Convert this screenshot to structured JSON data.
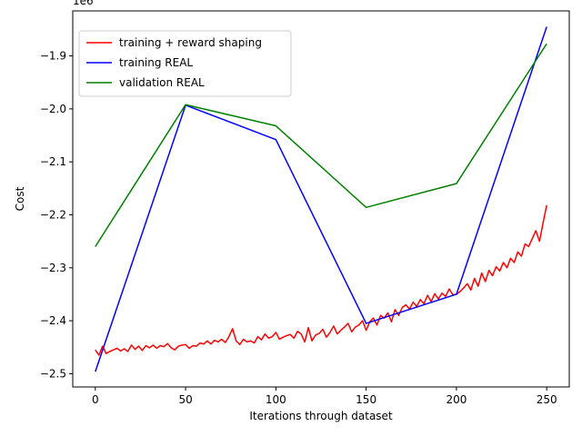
{
  "chart_data": {
    "type": "line",
    "xlabel": "Iterations through dataset",
    "ylabel": "Cost",
    "y_offset_label": "1e6",
    "xlim": [
      -12.5,
      262.5
    ],
    "ylim": [
      -2.525,
      -1.815
    ],
    "y_scale_factor": 1000000,
    "xticks": [
      0,
      50,
      100,
      150,
      200,
      250
    ],
    "yticks": [
      -2.5,
      -2.4,
      -2.3,
      -2.2,
      -2.1,
      -2.0,
      -1.9
    ],
    "ytick_labels": [
      "−2.5",
      "−2.4",
      "−2.3",
      "−2.2",
      "−2.1",
      "−2.0",
      "−1.9"
    ],
    "legend_position": "upper-left",
    "grid": false,
    "series": [
      {
        "name": "training + reward shaping",
        "color": "#ff0000",
        "x": [
          0,
          2,
          4,
          6,
          8,
          10,
          12,
          14,
          16,
          18,
          20,
          22,
          24,
          26,
          28,
          30,
          32,
          34,
          36,
          38,
          40,
          42,
          44,
          46,
          48,
          50,
          52,
          54,
          56,
          58,
          60,
          62,
          64,
          66,
          68,
          70,
          72,
          74,
          76,
          78,
          80,
          82,
          84,
          86,
          88,
          90,
          92,
          94,
          96,
          98,
          100,
          102,
          104,
          106,
          108,
          110,
          112,
          114,
          116,
          118,
          120,
          122,
          124,
          126,
          128,
          130,
          132,
          134,
          136,
          138,
          140,
          142,
          144,
          146,
          148,
          150,
          152,
          154,
          156,
          158,
          160,
          162,
          164,
          166,
          168,
          170,
          172,
          174,
          176,
          178,
          180,
          182,
          184,
          186,
          188,
          190,
          192,
          194,
          196,
          198,
          200,
          202,
          204,
          206,
          208,
          210,
          212,
          214,
          216,
          218,
          220,
          222,
          224,
          226,
          228,
          230,
          232,
          234,
          236,
          238,
          240,
          242,
          244,
          246,
          248,
          250
        ],
        "y": [
          -2.455,
          -2.465,
          -2.448,
          -2.462,
          -2.458,
          -2.455,
          -2.452,
          -2.457,
          -2.453,
          -2.458,
          -2.446,
          -2.454,
          -2.448,
          -2.456,
          -2.447,
          -2.451,
          -2.446,
          -2.452,
          -2.447,
          -2.449,
          -2.443,
          -2.451,
          -2.455,
          -2.448,
          -2.446,
          -2.445,
          -2.452,
          -2.447,
          -2.448,
          -2.442,
          -2.444,
          -2.438,
          -2.444,
          -2.437,
          -2.44,
          -2.435,
          -2.441,
          -2.43,
          -2.415,
          -2.438,
          -2.445,
          -2.435,
          -2.44,
          -2.438,
          -2.442,
          -2.43,
          -2.436,
          -2.425,
          -2.433,
          -2.43,
          -2.422,
          -2.435,
          -2.431,
          -2.428,
          -2.426,
          -2.433,
          -2.42,
          -2.425,
          -2.44,
          -2.413,
          -2.438,
          -2.427,
          -2.424,
          -2.416,
          -2.431,
          -2.422,
          -2.41,
          -2.425,
          -2.418,
          -2.412,
          -2.405,
          -2.421,
          -2.412,
          -2.408,
          -2.4,
          -2.418,
          -2.402,
          -2.395,
          -2.408,
          -2.39,
          -2.395,
          -2.385,
          -2.402,
          -2.379,
          -2.39,
          -2.375,
          -2.37,
          -2.378,
          -2.365,
          -2.373,
          -2.36,
          -2.368,
          -2.352,
          -2.364,
          -2.349,
          -2.359,
          -2.348,
          -2.354,
          -2.34,
          -2.351,
          -2.35,
          -2.345,
          -2.338,
          -2.33,
          -2.342,
          -2.32,
          -2.335,
          -2.31,
          -2.326,
          -2.305,
          -2.315,
          -2.298,
          -2.306,
          -2.29,
          -2.3,
          -2.282,
          -2.29,
          -2.27,
          -2.278,
          -2.255,
          -2.26,
          -2.245,
          -2.23,
          -2.25,
          -2.215,
          -2.182
        ]
      },
      {
        "name": "training REAL",
        "color": "#0000ff",
        "x": [
          0,
          50,
          100,
          150,
          200,
          250
        ],
        "y": [
          -2.496,
          -1.993,
          -2.058,
          -2.405,
          -2.35,
          -1.845
        ]
      },
      {
        "name": "validation REAL",
        "color": "#008000",
        "x": [
          0,
          50,
          100,
          150,
          200,
          250
        ],
        "y": [
          -2.26,
          -1.992,
          -2.032,
          -2.186,
          -2.141,
          -1.877
        ]
      }
    ]
  }
}
